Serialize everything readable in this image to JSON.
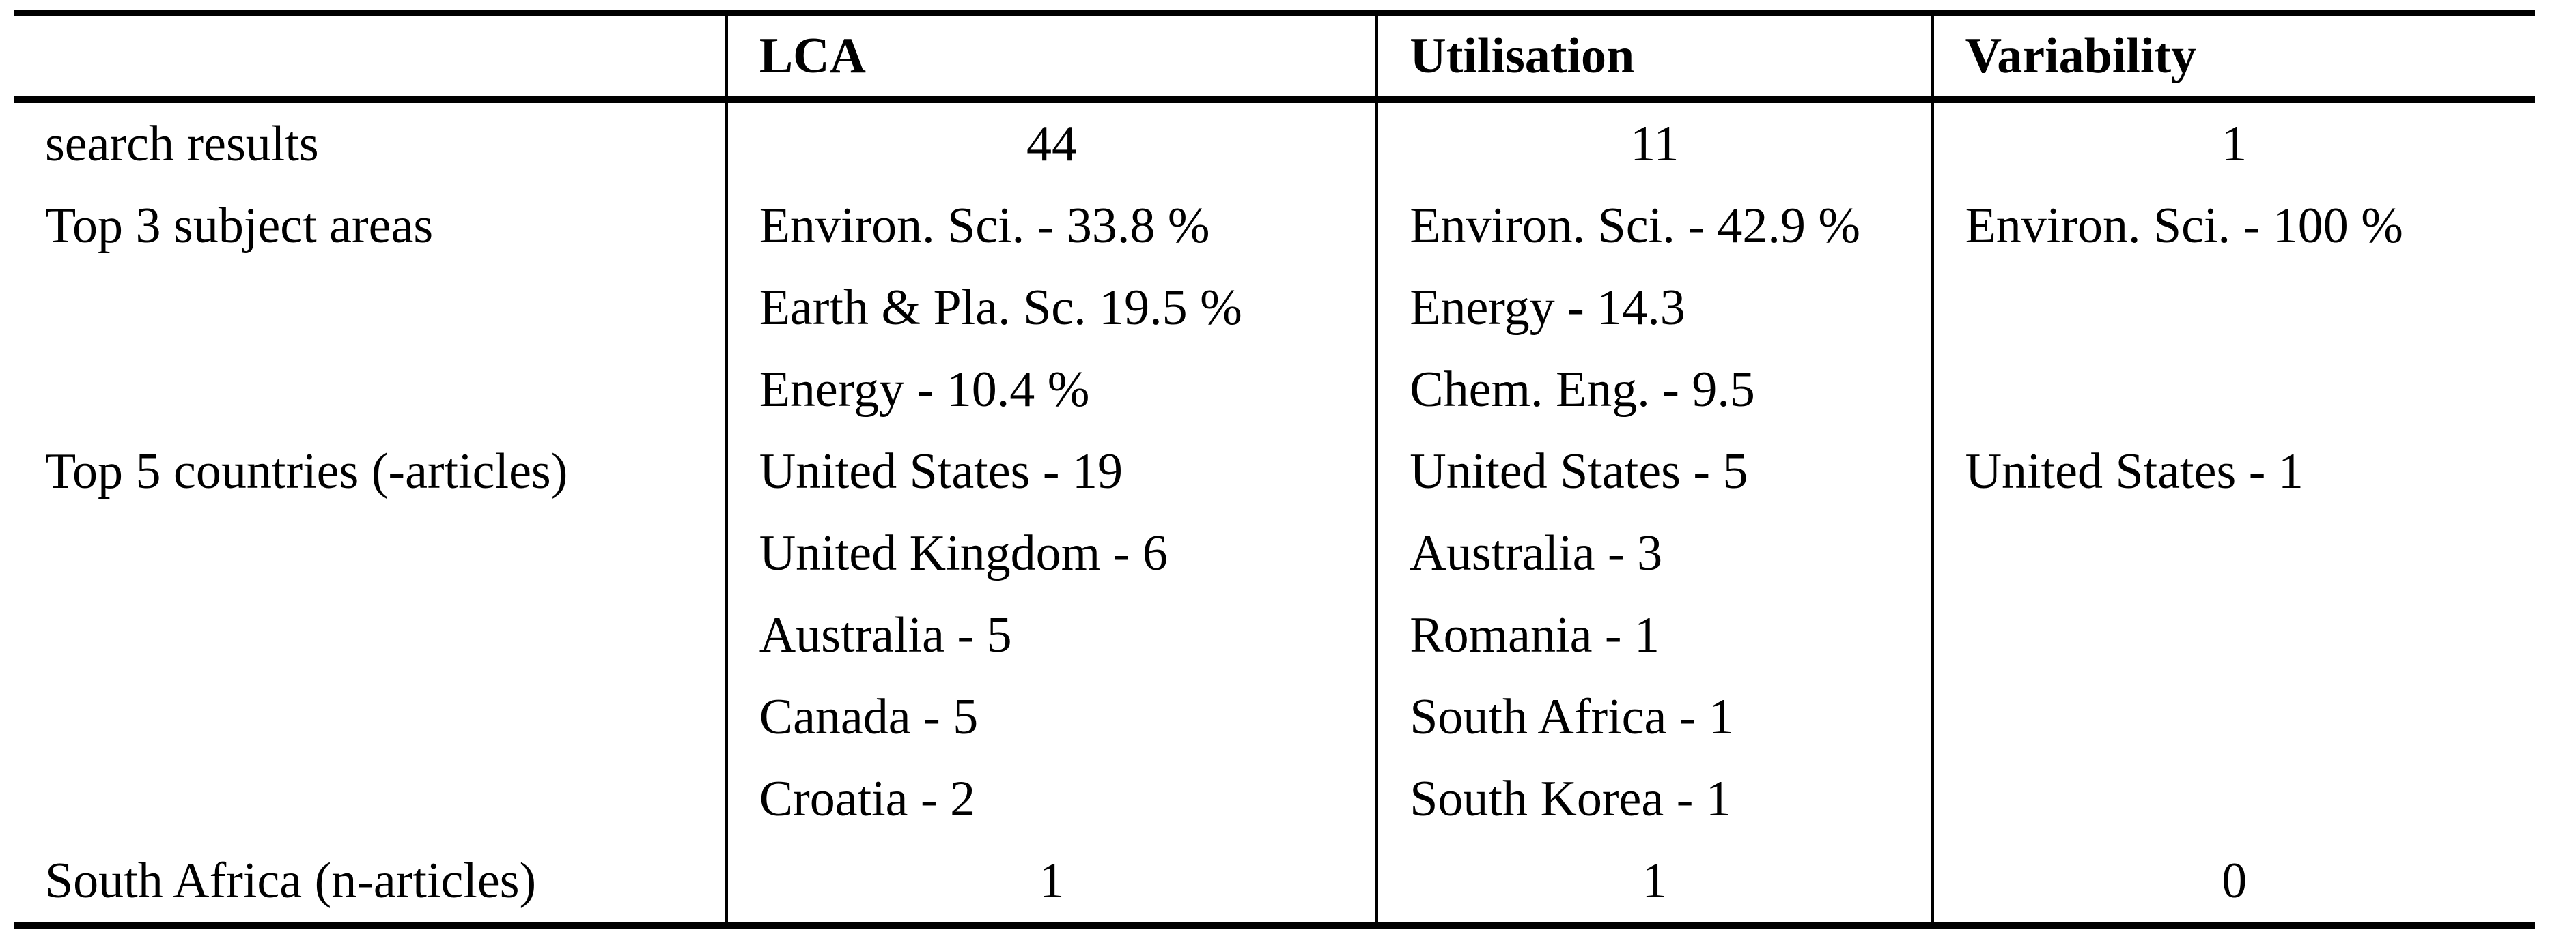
{
  "colors": {
    "background": "#ffffff",
    "text": "#000000",
    "rule": "#000000"
  },
  "table": {
    "header": {
      "c0": "",
      "c1": "LCA",
      "c2": "Utilisation",
      "c3": "Variability"
    },
    "rows": [
      {
        "c0": "search results",
        "c1": "44",
        "c2": "11",
        "c3": "1"
      },
      {
        "c0": "Top 3 subject areas",
        "c1": "Environ. Sci. - 33.8 %",
        "c2": "Environ. Sci. - 42.9 %",
        "c3": "Environ. Sci. - 100 %"
      },
      {
        "c0": "",
        "c1": "Earth & Pla. Sc. 19.5 %",
        "c2": "Energy - 14.3",
        "c3": ""
      },
      {
        "c0": "",
        "c1": "Energy - 10.4 %",
        "c2": "Chem. Eng. - 9.5",
        "c3": ""
      },
      {
        "c0": "Top 5 countries (-articles)",
        "c1": "United States - 19",
        "c2": "United States - 5",
        "c3": "United States - 1"
      },
      {
        "c0": "",
        "c1": "United Kingdom - 6",
        "c2": "Australia - 3",
        "c3": ""
      },
      {
        "c0": "",
        "c1": "Australia - 5",
        "c2": "Romania - 1",
        "c3": ""
      },
      {
        "c0": "",
        "c1": "Canada - 5",
        "c2": "South Africa - 1",
        "c3": ""
      },
      {
        "c0": "",
        "c1": "Croatia - 2",
        "c2": "South Korea - 1",
        "c3": ""
      },
      {
        "c0": "South Africa (n-articles)",
        "c1": "1",
        "c2": "1",
        "c3": "0"
      }
    ]
  }
}
